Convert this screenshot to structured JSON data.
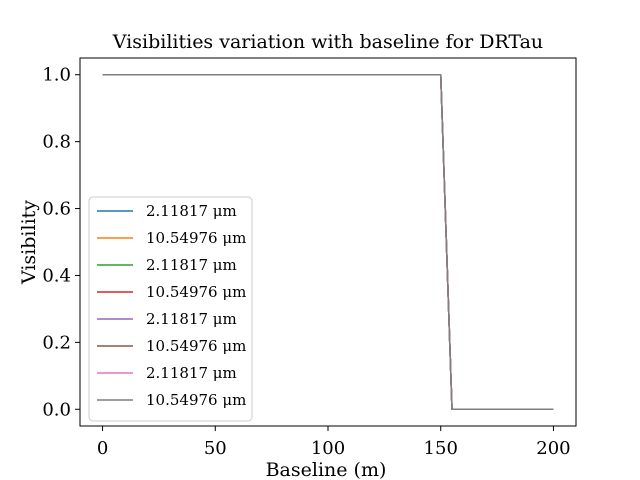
{
  "chart_data": {
    "type": "line",
    "title": "Visibilities variation with baseline for DRTau",
    "xlabel": "Baseline (m)",
    "ylabel": "Visibility",
    "xlim": [
      -10,
      210
    ],
    "ylim": [
      -0.05,
      1.05
    ],
    "xticks": [
      0,
      50,
      100,
      150,
      200
    ],
    "xtick_labels": [
      "0",
      "50",
      "100",
      "150",
      "200"
    ],
    "yticks": [
      0.0,
      0.2,
      0.4,
      0.6,
      0.8,
      1.0
    ],
    "ytick_labels": [
      "0.0",
      "0.2",
      "0.4",
      "0.6",
      "0.8",
      "1.0"
    ],
    "grid": false,
    "legend_position": "center-left",
    "x": [
      0,
      150,
      155,
      200
    ],
    "series": [
      {
        "name": "2.11817 μm",
        "color": "#1f77b4",
        "values": [
          1.0,
          1.0,
          0.0,
          0.0
        ]
      },
      {
        "name": "10.54976 μm",
        "color": "#ff7f0e",
        "values": [
          1.0,
          1.0,
          0.0,
          0.0
        ]
      },
      {
        "name": "2.11817 μm",
        "color": "#2ca02c",
        "values": [
          1.0,
          1.0,
          0.0,
          0.0
        ]
      },
      {
        "name": "10.54976 μm",
        "color": "#d62728",
        "values": [
          1.0,
          1.0,
          0.0,
          0.0
        ]
      },
      {
        "name": "2.11817 μm",
        "color": "#9467bd",
        "values": [
          1.0,
          1.0,
          0.0,
          0.0
        ]
      },
      {
        "name": "10.54976 μm",
        "color": "#8c564b",
        "values": [
          1.0,
          1.0,
          0.0,
          0.0
        ]
      },
      {
        "name": "2.11817 μm",
        "color": "#e377c2",
        "values": [
          1.0,
          1.0,
          0.0,
          0.0
        ]
      },
      {
        "name": "10.54976 μm",
        "color": "#7f7f7f",
        "values": [
          1.0,
          1.0,
          0.0,
          0.0
        ]
      }
    ]
  }
}
